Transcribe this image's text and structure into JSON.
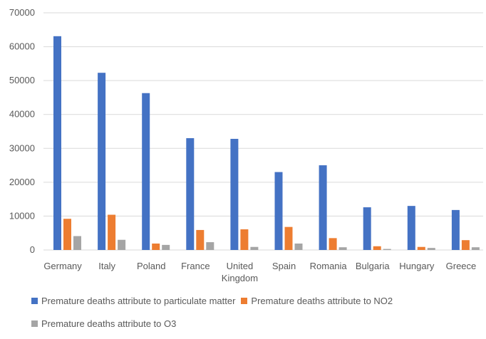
{
  "chart_data": {
    "type": "bar",
    "title": "",
    "xlabel": "",
    "ylabel": "",
    "ylim": [
      0,
      70000
    ],
    "yticks": [
      0,
      10000,
      20000,
      30000,
      40000,
      50000,
      60000,
      70000
    ],
    "grid": true,
    "legend_position": "bottom",
    "categories": [
      "Germany",
      "Italy",
      "Poland",
      "France",
      "United Kingdom",
      "Spain",
      "Romania",
      "Bulgaria",
      "Hungary",
      "Greece"
    ],
    "series": [
      {
        "name": "Premature deaths attribute to particulate matter",
        "color": "#4472c4",
        "values": [
          63100,
          52300,
          46300,
          33000,
          32800,
          23000,
          25000,
          12600,
          13000,
          11800
        ]
      },
      {
        "name": "Premature deaths attribute to NO2",
        "color": "#ed7d31",
        "values": [
          9200,
          10400,
          1900,
          5900,
          6100,
          6800,
          3500,
          1100,
          900,
          2900
        ]
      },
      {
        "name": "Premature deaths attribute to O3",
        "color": "#a5a5a5",
        "values": [
          4100,
          3000,
          1500,
          2300,
          900,
          1900,
          800,
          300,
          600,
          800
        ]
      }
    ]
  }
}
